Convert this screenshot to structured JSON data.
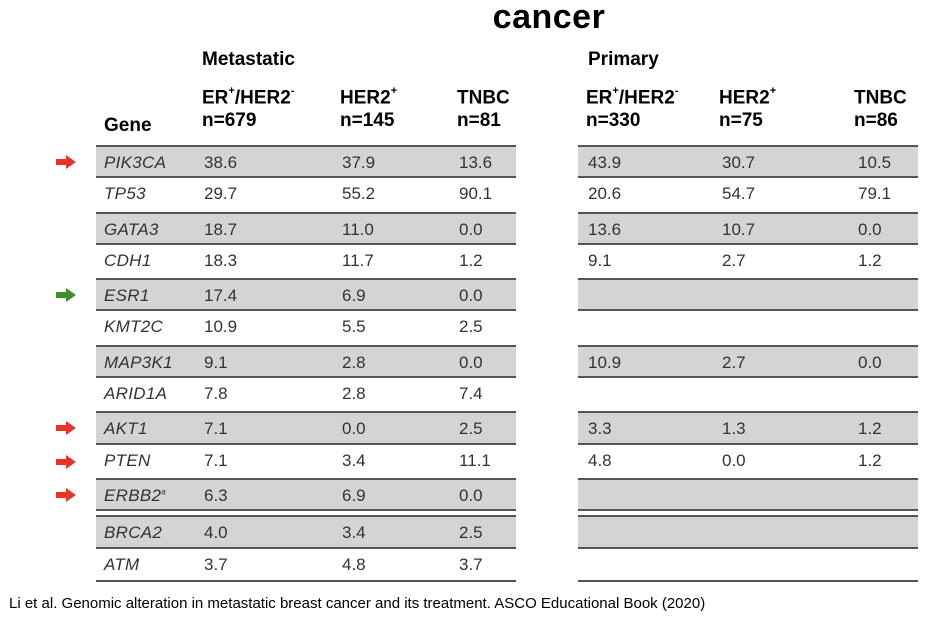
{
  "title": "cancer",
  "groups": {
    "metastatic": "Metastatic",
    "primary": "Primary"
  },
  "gene_header": "Gene",
  "headers": {
    "metastatic": [
      {
        "name": "ER",
        "sup1": "+",
        "mid": "/HER2",
        "sup2": "-",
        "n": "n=679"
      },
      {
        "name": "HER2",
        "sup1": "+",
        "mid": "",
        "sup2": "",
        "n": "n=145"
      },
      {
        "name": "TNBC",
        "sup1": "",
        "mid": "",
        "sup2": "",
        "n": "n=81"
      }
    ],
    "primary": [
      {
        "name": "ER",
        "sup1": "+",
        "mid": "/HER2",
        "sup2": "-",
        "n": "n=330"
      },
      {
        "name": "HER2",
        "sup1": "+",
        "mid": "",
        "sup2": "",
        "n": "n=75"
      },
      {
        "name": "TNBC",
        "sup1": "",
        "mid": "",
        "sup2": "",
        "n": "n=86"
      }
    ]
  },
  "rows": [
    {
      "gene": "PIK3CA",
      "arrow": "red",
      "shade": true,
      "met": [
        "38.6",
        "37.9",
        "13.6"
      ],
      "pri": [
        "43.9",
        "30.7",
        "10.5"
      ]
    },
    {
      "gene": "TP53",
      "arrow": "",
      "shade": false,
      "met": [
        "29.7",
        "55.2",
        "90.1"
      ],
      "pri": [
        "20.6",
        "54.7",
        "79.1"
      ]
    },
    {
      "gene": "GATA3",
      "arrow": "",
      "shade": true,
      "met": [
        "18.7",
        "11.0",
        "0.0"
      ],
      "pri": [
        "13.6",
        "10.7",
        "0.0"
      ]
    },
    {
      "gene": "CDH1",
      "arrow": "",
      "shade": false,
      "met": [
        "18.3",
        "11.7",
        "1.2"
      ],
      "pri": [
        "9.1",
        "2.7",
        "1.2"
      ]
    },
    {
      "gene": "ESR1",
      "arrow": "green",
      "shade": true,
      "met": [
        "17.4",
        "6.9",
        "0.0"
      ],
      "pri": [
        "",
        "",
        ""
      ]
    },
    {
      "gene": "KMT2C",
      "arrow": "",
      "shade": false,
      "met": [
        "10.9",
        "5.5",
        "2.5"
      ],
      "pri": [
        "",
        "",
        ""
      ]
    },
    {
      "gene": "MAP3K1",
      "arrow": "",
      "shade": true,
      "met": [
        "9.1",
        "2.8",
        "0.0"
      ],
      "pri": [
        "10.9",
        "2.7",
        "0.0"
      ]
    },
    {
      "gene": "ARID1A",
      "arrow": "",
      "shade": false,
      "met": [
        "7.8",
        "2.8",
        "7.4"
      ],
      "pri": [
        "",
        "",
        ""
      ]
    },
    {
      "gene": "AKT1",
      "arrow": "red",
      "shade": true,
      "met": [
        "7.1",
        "0.0",
        "2.5"
      ],
      "pri": [
        "3.3",
        "1.3",
        "1.2"
      ]
    },
    {
      "gene": "PTEN",
      "arrow": "red",
      "shade": false,
      "met": [
        "7.1",
        "3.4",
        "11.1"
      ],
      "pri": [
        "4.8",
        "0.0",
        "1.2"
      ]
    },
    {
      "gene": "ERBB2",
      "gene_sup": "a",
      "arrow": "red",
      "shade": true,
      "met": [
        "6.3",
        "6.9",
        "0.0"
      ],
      "pri": [
        "",
        "",
        ""
      ]
    },
    {
      "gene": "BRCA2",
      "arrow": "",
      "shade": true,
      "met": [
        "4.0",
        "3.4",
        "2.5"
      ],
      "pri": [
        "",
        "",
        ""
      ]
    },
    {
      "gene": "ATM",
      "arrow": "",
      "shade": false,
      "met": [
        "3.7",
        "4.8",
        "3.7"
      ],
      "pri": [
        "",
        "",
        ""
      ]
    }
  ],
  "colors": {
    "red_arrow": "#e8322a",
    "green_arrow": "#3f8f2a",
    "shade": "#d4d4d4"
  },
  "caption": "Li et al. Genomic alteration in metastatic breast cancer and its treatment. ASCO Educational Book (2020)"
}
